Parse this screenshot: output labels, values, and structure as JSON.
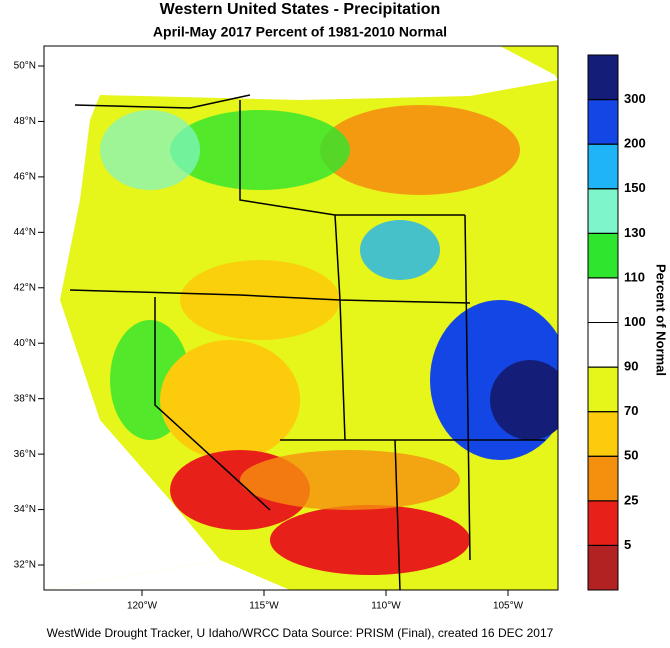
{
  "title": "Western United States - Precipitation",
  "subtitle": "April-May 2017  Percent of 1981-2010 Normal",
  "footer": "WestWide Drought Tracker, U Idaho/WRCC Data Source: PRISM (Final), created 16 DEC 2017",
  "map": {
    "lat_ticks": [
      {
        "value": 50,
        "label": "50°N"
      },
      {
        "value": 48,
        "label": "48°N"
      },
      {
        "value": 46,
        "label": "46°N"
      },
      {
        "value": 44,
        "label": "44°N"
      },
      {
        "value": 42,
        "label": "42°N"
      },
      {
        "value": 40,
        "label": "40°N"
      },
      {
        "value": 38,
        "label": "38°N"
      },
      {
        "value": 36,
        "label": "36°N"
      },
      {
        "value": 34,
        "label": "34°N"
      },
      {
        "value": 32,
        "label": "32°N"
      }
    ],
    "lon_ticks": [
      {
        "value": -120,
        "label": "120°W"
      },
      {
        "value": -115,
        "label": "115°W"
      },
      {
        "value": -110,
        "label": "110°W"
      },
      {
        "value": -105,
        "label": "105°W"
      }
    ]
  },
  "colorbar": {
    "title": "Percent of Normal",
    "labels": [
      5,
      25,
      50,
      70,
      90,
      100,
      110,
      130,
      150,
      200,
      300
    ],
    "colors": [
      "#b22222",
      "#e8201a",
      "#f5900f",
      "#fccc0c",
      "#e6f51a",
      "#ffffff",
      "#ffffff",
      "#2ee62e",
      "#7ff5cc",
      "#1eb4f5",
      "#1446e6",
      "#141e78"
    ]
  }
}
